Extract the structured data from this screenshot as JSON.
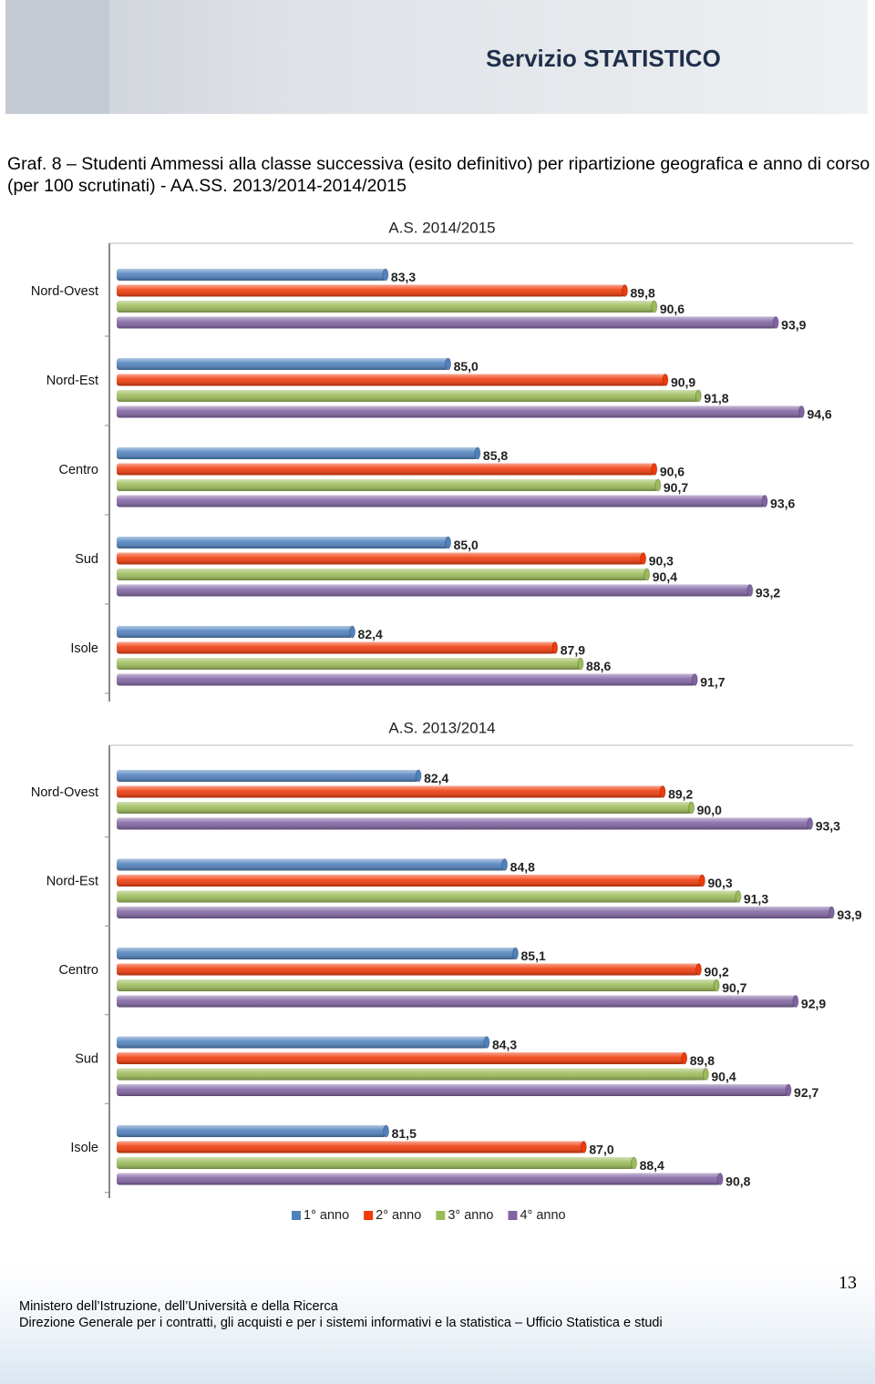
{
  "header": {
    "brand": "Servizio STATISTICO"
  },
  "caption": "Graf. 8 – Studenti Ammessi alla classe successiva (esito definitivo) per ripartizione geografica e anno di corso (per 100 scrutinati) - AA.SS. 2013/2014-2014/2015",
  "chart_data": [
    {
      "type": "bar",
      "orientation": "horizontal",
      "title": "A.S. 2014/2015",
      "categories": [
        "Nord-Ovest",
        "Nord-Est",
        "Centro",
        "Sud",
        "Isole"
      ],
      "xlim": [
        76,
        96
      ],
      "series": [
        {
          "color": "#4f81bd",
          "values": [
            83.3,
            85.0,
            85.8,
            85.0,
            82.4
          ],
          "value_labels": [
            "83,3",
            "85,0",
            "85,8",
            "85,0",
            "82,4"
          ]
        },
        {
          "color": "#f03a0a",
          "values": [
            89.8,
            90.9,
            90.6,
            90.3,
            87.9
          ],
          "value_labels": [
            "89,8",
            "90,9",
            "90,6",
            "90,3",
            "87,9"
          ]
        },
        {
          "color": "#9bbb59",
          "values": [
            90.6,
            91.8,
            90.7,
            90.4,
            88.6
          ],
          "value_labels": [
            "90,6",
            "91,8",
            "90,7",
            "90,4",
            "88,6"
          ]
        },
        {
          "color": "#8064a2",
          "values": [
            93.9,
            94.6,
            93.6,
            93.2,
            91.7
          ],
          "value_labels": [
            "93,9",
            "94,6",
            "93,6",
            "93,2",
            "91,7"
          ]
        }
      ]
    },
    {
      "type": "bar",
      "orientation": "horizontal",
      "title": "A.S. 2013/2014",
      "categories": [
        "Nord-Ovest",
        "Nord-Est",
        "Centro",
        "Sud",
        "Isole"
      ],
      "xlim": [
        74,
        94.5
      ],
      "legend": "bottom",
      "series": [
        {
          "name": "1° anno",
          "color": "#4f81bd",
          "values": [
            82.4,
            84.8,
            85.1,
            84.3,
            81.5
          ],
          "value_labels": [
            "82,4",
            "84,8",
            "85,1",
            "84,3",
            "81,5"
          ]
        },
        {
          "name": "2° anno",
          "color": "#f03a0a",
          "values": [
            89.2,
            90.3,
            90.2,
            89.8,
            87.0
          ],
          "value_labels": [
            "89,2",
            "90,3",
            "90,2",
            "89,8",
            "87,0"
          ]
        },
        {
          "name": "3° anno",
          "color": "#9bbb59",
          "values": [
            90.0,
            91.3,
            90.7,
            90.4,
            88.4
          ],
          "value_labels": [
            "90,0",
            "91,3",
            "90,7",
            "90,4",
            "88,4"
          ]
        },
        {
          "name": "4° anno",
          "color": "#8064a2",
          "values": [
            93.3,
            93.9,
            92.9,
            92.7,
            90.8
          ],
          "value_labels": [
            "93,3",
            "93,9",
            "92,9",
            "92,7",
            "90,8"
          ]
        }
      ]
    }
  ],
  "footer": {
    "page_number": "13",
    "line1": "Ministero dell’Istruzione, dell’Università e della Ricerca",
    "line2": "Direzione Generale per i contratti, gli acquisti e per i sistemi informativi e la statistica – Ufficio Statistica e studi"
  }
}
